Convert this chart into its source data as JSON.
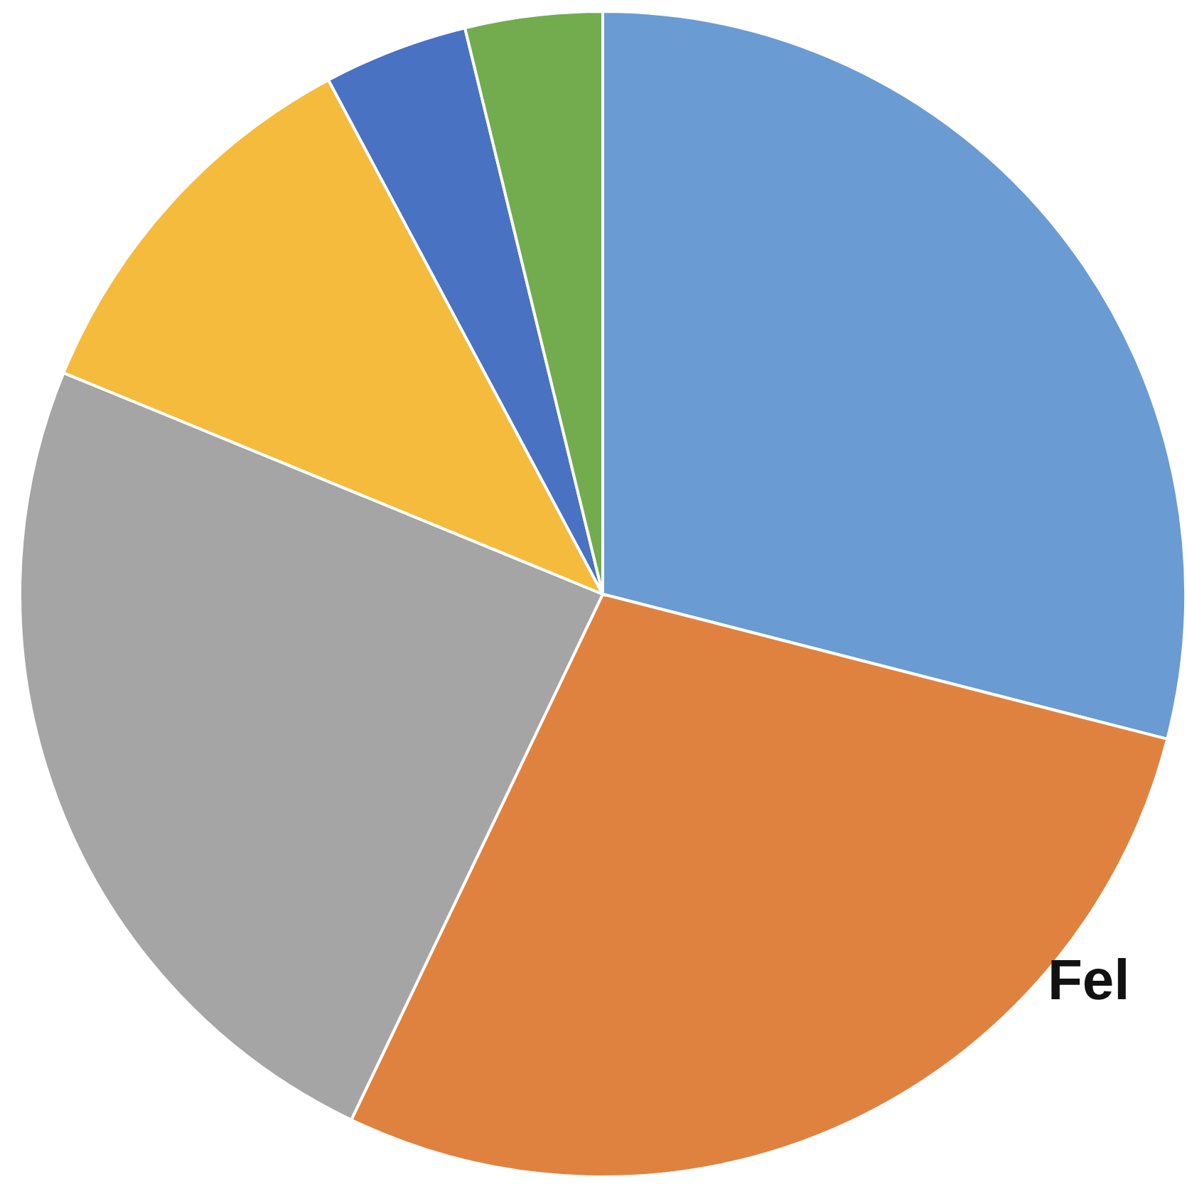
{
  "chart_data": {
    "type": "pie",
    "categories": [
      null,
      null,
      null,
      null,
      null,
      null
    ],
    "values": [
      29.0,
      28.1,
      24.1,
      11.0,
      4.0,
      3.8
    ],
    "colors": [
      "#6a9bd3",
      "#e0823f",
      "#a5a5a5",
      "#f4bb3d",
      "#4a72c2",
      "#73ab4f"
    ],
    "annotations": [
      "Fel"
    ]
  }
}
